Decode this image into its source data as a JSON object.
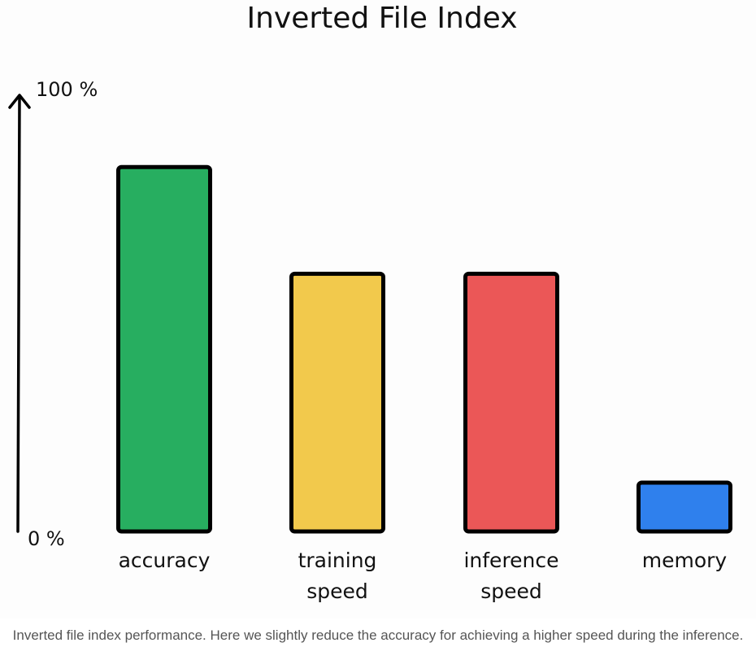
{
  "chart_data": {
    "type": "bar",
    "title": "Inverted File Index",
    "categories": [
      [
        "accuracy"
      ],
      [
        "training",
        "speed"
      ],
      [
        "inference",
        "speed"
      ],
      [
        "memory"
      ]
    ],
    "values": [
      82,
      58,
      58,
      11
    ],
    "colors": [
      "#27ae60",
      "#f2c94c",
      "#eb5757",
      "#2f80ed"
    ],
    "ylim": [
      0,
      100
    ],
    "y_tick_labels": [
      "0 %",
      "100 %"
    ],
    "grid": false,
    "legend": "none"
  },
  "caption": "Inverted file index performance. Here we slightly reduce the accuracy for achieving a higher speed during the inference."
}
